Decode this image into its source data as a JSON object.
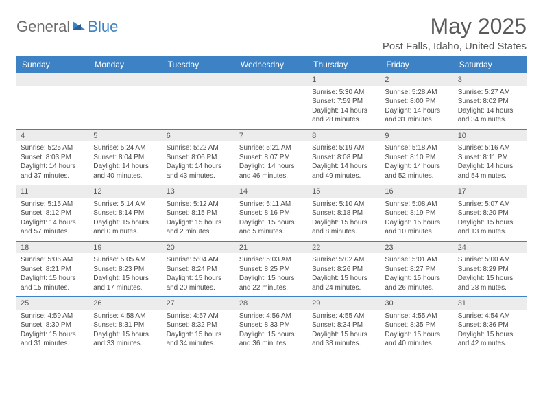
{
  "brand": {
    "part1": "General",
    "part2": "Blue"
  },
  "title": "May 2025",
  "location": "Post Falls, Idaho, United States",
  "colors": {
    "accent": "#3c82c4",
    "strip": "#ececec",
    "text": "#4a4a4a",
    "heading": "#5a5a5a"
  },
  "weekdays": [
    "Sunday",
    "Monday",
    "Tuesday",
    "Wednesday",
    "Thursday",
    "Friday",
    "Saturday"
  ],
  "weeks": [
    {
      "nums": [
        "",
        "",
        "",
        "",
        "1",
        "2",
        "3"
      ],
      "cells": [
        null,
        null,
        null,
        null,
        {
          "sunrise": "Sunrise: 5:30 AM",
          "sunset": "Sunset: 7:59 PM",
          "day1": "Daylight: 14 hours",
          "day2": "and 28 minutes."
        },
        {
          "sunrise": "Sunrise: 5:28 AM",
          "sunset": "Sunset: 8:00 PM",
          "day1": "Daylight: 14 hours",
          "day2": "and 31 minutes."
        },
        {
          "sunrise": "Sunrise: 5:27 AM",
          "sunset": "Sunset: 8:02 PM",
          "day1": "Daylight: 14 hours",
          "day2": "and 34 minutes."
        }
      ]
    },
    {
      "nums": [
        "4",
        "5",
        "6",
        "7",
        "8",
        "9",
        "10"
      ],
      "cells": [
        {
          "sunrise": "Sunrise: 5:25 AM",
          "sunset": "Sunset: 8:03 PM",
          "day1": "Daylight: 14 hours",
          "day2": "and 37 minutes."
        },
        {
          "sunrise": "Sunrise: 5:24 AM",
          "sunset": "Sunset: 8:04 PM",
          "day1": "Daylight: 14 hours",
          "day2": "and 40 minutes."
        },
        {
          "sunrise": "Sunrise: 5:22 AM",
          "sunset": "Sunset: 8:06 PM",
          "day1": "Daylight: 14 hours",
          "day2": "and 43 minutes."
        },
        {
          "sunrise": "Sunrise: 5:21 AM",
          "sunset": "Sunset: 8:07 PM",
          "day1": "Daylight: 14 hours",
          "day2": "and 46 minutes."
        },
        {
          "sunrise": "Sunrise: 5:19 AM",
          "sunset": "Sunset: 8:08 PM",
          "day1": "Daylight: 14 hours",
          "day2": "and 49 minutes."
        },
        {
          "sunrise": "Sunrise: 5:18 AM",
          "sunset": "Sunset: 8:10 PM",
          "day1": "Daylight: 14 hours",
          "day2": "and 52 minutes."
        },
        {
          "sunrise": "Sunrise: 5:16 AM",
          "sunset": "Sunset: 8:11 PM",
          "day1": "Daylight: 14 hours",
          "day2": "and 54 minutes."
        }
      ]
    },
    {
      "nums": [
        "11",
        "12",
        "13",
        "14",
        "15",
        "16",
        "17"
      ],
      "cells": [
        {
          "sunrise": "Sunrise: 5:15 AM",
          "sunset": "Sunset: 8:12 PM",
          "day1": "Daylight: 14 hours",
          "day2": "and 57 minutes."
        },
        {
          "sunrise": "Sunrise: 5:14 AM",
          "sunset": "Sunset: 8:14 PM",
          "day1": "Daylight: 15 hours",
          "day2": "and 0 minutes."
        },
        {
          "sunrise": "Sunrise: 5:12 AM",
          "sunset": "Sunset: 8:15 PM",
          "day1": "Daylight: 15 hours",
          "day2": "and 2 minutes."
        },
        {
          "sunrise": "Sunrise: 5:11 AM",
          "sunset": "Sunset: 8:16 PM",
          "day1": "Daylight: 15 hours",
          "day2": "and 5 minutes."
        },
        {
          "sunrise": "Sunrise: 5:10 AM",
          "sunset": "Sunset: 8:18 PM",
          "day1": "Daylight: 15 hours",
          "day2": "and 8 minutes."
        },
        {
          "sunrise": "Sunrise: 5:08 AM",
          "sunset": "Sunset: 8:19 PM",
          "day1": "Daylight: 15 hours",
          "day2": "and 10 minutes."
        },
        {
          "sunrise": "Sunrise: 5:07 AM",
          "sunset": "Sunset: 8:20 PM",
          "day1": "Daylight: 15 hours",
          "day2": "and 13 minutes."
        }
      ]
    },
    {
      "nums": [
        "18",
        "19",
        "20",
        "21",
        "22",
        "23",
        "24"
      ],
      "cells": [
        {
          "sunrise": "Sunrise: 5:06 AM",
          "sunset": "Sunset: 8:21 PM",
          "day1": "Daylight: 15 hours",
          "day2": "and 15 minutes."
        },
        {
          "sunrise": "Sunrise: 5:05 AM",
          "sunset": "Sunset: 8:23 PM",
          "day1": "Daylight: 15 hours",
          "day2": "and 17 minutes."
        },
        {
          "sunrise": "Sunrise: 5:04 AM",
          "sunset": "Sunset: 8:24 PM",
          "day1": "Daylight: 15 hours",
          "day2": "and 20 minutes."
        },
        {
          "sunrise": "Sunrise: 5:03 AM",
          "sunset": "Sunset: 8:25 PM",
          "day1": "Daylight: 15 hours",
          "day2": "and 22 minutes."
        },
        {
          "sunrise": "Sunrise: 5:02 AM",
          "sunset": "Sunset: 8:26 PM",
          "day1": "Daylight: 15 hours",
          "day2": "and 24 minutes."
        },
        {
          "sunrise": "Sunrise: 5:01 AM",
          "sunset": "Sunset: 8:27 PM",
          "day1": "Daylight: 15 hours",
          "day2": "and 26 minutes."
        },
        {
          "sunrise": "Sunrise: 5:00 AM",
          "sunset": "Sunset: 8:29 PM",
          "day1": "Daylight: 15 hours",
          "day2": "and 28 minutes."
        }
      ]
    },
    {
      "nums": [
        "25",
        "26",
        "27",
        "28",
        "29",
        "30",
        "31"
      ],
      "cells": [
        {
          "sunrise": "Sunrise: 4:59 AM",
          "sunset": "Sunset: 8:30 PM",
          "day1": "Daylight: 15 hours",
          "day2": "and 31 minutes."
        },
        {
          "sunrise": "Sunrise: 4:58 AM",
          "sunset": "Sunset: 8:31 PM",
          "day1": "Daylight: 15 hours",
          "day2": "and 33 minutes."
        },
        {
          "sunrise": "Sunrise: 4:57 AM",
          "sunset": "Sunset: 8:32 PM",
          "day1": "Daylight: 15 hours",
          "day2": "and 34 minutes."
        },
        {
          "sunrise": "Sunrise: 4:56 AM",
          "sunset": "Sunset: 8:33 PM",
          "day1": "Daylight: 15 hours",
          "day2": "and 36 minutes."
        },
        {
          "sunrise": "Sunrise: 4:55 AM",
          "sunset": "Sunset: 8:34 PM",
          "day1": "Daylight: 15 hours",
          "day2": "and 38 minutes."
        },
        {
          "sunrise": "Sunrise: 4:55 AM",
          "sunset": "Sunset: 8:35 PM",
          "day1": "Daylight: 15 hours",
          "day2": "and 40 minutes."
        },
        {
          "sunrise": "Sunrise: 4:54 AM",
          "sunset": "Sunset: 8:36 PM",
          "day1": "Daylight: 15 hours",
          "day2": "and 42 minutes."
        }
      ]
    }
  ]
}
